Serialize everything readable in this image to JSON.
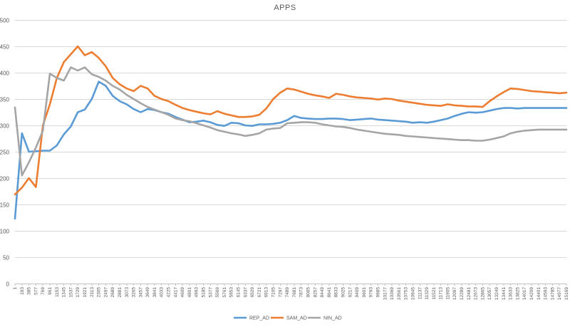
{
  "chart_data": {
    "type": "line",
    "title": "APPS",
    "xlabel": "",
    "ylabel": "",
    "ylim": [
      0,
      500
    ],
    "yticks": [
      0,
      50,
      100,
      150,
      200,
      250,
      300,
      350,
      400,
      450,
      500
    ],
    "grid": true,
    "legend_position": "bottom",
    "x": [
      1,
      193,
      385,
      577,
      769,
      961,
      1153,
      1345,
      1537,
      1729,
      1921,
      2113,
      2305,
      2497,
      2689,
      2881,
      3073,
      3265,
      3457,
      3649,
      3841,
      4033,
      4225,
      4417,
      4609,
      4801,
      4993,
      5185,
      5377,
      5569,
      5761,
      5953,
      6145,
      6337,
      6529,
      6721,
      6913,
      7105,
      7297,
      7489,
      7681,
      7873,
      8065,
      8257,
      8449,
      8641,
      8833,
      9025,
      9217,
      9409,
      9601,
      9793,
      9985,
      10177,
      10369,
      10561,
      10753,
      10945,
      11137,
      11329,
      11521,
      11713,
      11905,
      12097,
      12289,
      12481,
      12673,
      12865,
      13057,
      13249,
      13441,
      13633,
      13825,
      14017,
      14209,
      14401,
      14593,
      14785,
      14977,
      15169
    ],
    "series": [
      {
        "name": "REP_AD",
        "color": "#5b9bd5",
        "values": [
          123,
          285,
          250,
          251,
          252,
          252,
          262,
          283,
          298,
          325,
          330,
          350,
          383,
          375,
          356,
          346,
          340,
          331,
          325,
          331,
          329,
          325,
          322,
          316,
          311,
          306,
          307,
          309,
          306,
          301,
          299,
          305,
          304,
          300,
          299,
          302,
          302,
          303,
          305,
          310,
          318,
          314,
          313,
          312,
          312,
          313,
          313,
          312,
          310,
          311,
          312,
          313,
          311,
          310,
          309,
          308,
          307,
          305,
          306,
          305,
          307,
          310,
          313,
          318,
          322,
          325,
          324,
          325,
          328,
          331,
          333,
          333,
          332,
          333,
          333,
          333,
          333,
          333,
          333,
          333
        ]
      },
      {
        "name": "SAM_AD",
        "color": "#ed7d31",
        "values": [
          169,
          182,
          200,
          183,
          300,
          340,
          390,
          420,
          435,
          450,
          433,
          439,
          428,
          412,
          390,
          378,
          370,
          365,
          375,
          370,
          356,
          350,
          346,
          339,
          333,
          329,
          326,
          323,
          321,
          327,
          322,
          319,
          316,
          316,
          317,
          320,
          332,
          350,
          362,
          370,
          368,
          364,
          360,
          357,
          355,
          352,
          360,
          358,
          355,
          353,
          352,
          351,
          349,
          351,
          350,
          347,
          345,
          343,
          341,
          339,
          338,
          337,
          340,
          338,
          337,
          336,
          336,
          335,
          346,
          355,
          363,
          370,
          369,
          367,
          365,
          364,
          363,
          362,
          361,
          362
        ]
      },
      {
        "name": "NIN_AD",
        "color": "#a5a5a5",
        "values": [
          334,
          205,
          230,
          258,
          290,
          398,
          390,
          385,
          410,
          404,
          410,
          397,
          392,
          385,
          375,
          368,
          358,
          350,
          342,
          335,
          330,
          325,
          320,
          313,
          310,
          308,
          304,
          300,
          296,
          291,
          288,
          285,
          283,
          280,
          282,
          285,
          292,
          294,
          295,
          304,
          305,
          306,
          306,
          305,
          302,
          300,
          298,
          297,
          295,
          292,
          290,
          288,
          286,
          284,
          283,
          282,
          280,
          279,
          278,
          277,
          276,
          275,
          274,
          273,
          272,
          272,
          271,
          271,
          273,
          276,
          279,
          285,
          288,
          290,
          291,
          292,
          292,
          292,
          292,
          292
        ]
      }
    ]
  }
}
